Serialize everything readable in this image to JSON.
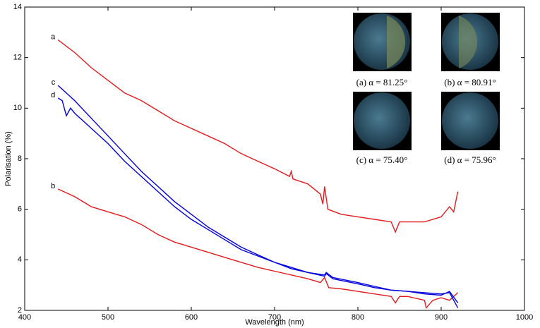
{
  "chart_data": {
    "type": "line",
    "xlabel": "Wavelength (nm)",
    "ylabel": "Polarisation (%)",
    "xlim": [
      400,
      1000
    ],
    "xticks": [
      400,
      500,
      600,
      700,
      800,
      900,
      1000
    ],
    "ylim": [
      2,
      14
    ],
    "yticks": [
      2,
      4,
      6,
      8,
      10,
      12,
      14
    ],
    "series": [
      {
        "name": "a",
        "color": "#e31a1c",
        "x": [
          440,
          460,
          480,
          500,
          520,
          540,
          560,
          580,
          600,
          620,
          640,
          660,
          680,
          700,
          718,
          720,
          722,
          740,
          755,
          758,
          760,
          764,
          780,
          800,
          820,
          840,
          845,
          850,
          860,
          880,
          900,
          910,
          915,
          920
        ],
        "values": [
          12.7,
          12.2,
          11.6,
          11.1,
          10.6,
          10.3,
          9.9,
          9.5,
          9.2,
          8.9,
          8.6,
          8.2,
          7.9,
          7.6,
          7.3,
          7.5,
          7.2,
          7.0,
          6.6,
          6.2,
          6.9,
          6.0,
          5.8,
          5.7,
          5.6,
          5.5,
          5.1,
          5.5,
          5.5,
          5.5,
          5.7,
          6.1,
          5.9,
          6.7
        ]
      },
      {
        "name": "b",
        "color": "#e31a1c",
        "x": [
          440,
          460,
          480,
          500,
          520,
          540,
          560,
          580,
          600,
          620,
          640,
          660,
          680,
          700,
          720,
          740,
          755,
          760,
          765,
          780,
          800,
          820,
          840,
          845,
          850,
          860,
          880,
          882,
          890,
          900,
          910,
          920
        ],
        "values": [
          6.8,
          6.5,
          6.1,
          5.9,
          5.7,
          5.4,
          5.0,
          4.7,
          4.5,
          4.3,
          4.1,
          3.9,
          3.7,
          3.55,
          3.4,
          3.25,
          3.1,
          3.3,
          2.9,
          2.85,
          2.75,
          2.65,
          2.55,
          2.3,
          2.55,
          2.55,
          2.4,
          2.1,
          2.4,
          2.5,
          2.4,
          2.7
        ]
      },
      {
        "name": "c",
        "color": "#0000dd",
        "x": [
          440,
          460,
          480,
          500,
          520,
          540,
          560,
          580,
          600,
          620,
          640,
          660,
          680,
          700,
          720,
          740,
          760,
          762,
          770,
          800,
          820,
          840,
          860,
          880,
          900,
          910,
          920
        ],
        "values": [
          10.9,
          10.3,
          9.6,
          8.9,
          8.2,
          7.5,
          6.9,
          6.3,
          5.8,
          5.3,
          4.9,
          4.5,
          4.2,
          3.9,
          3.7,
          3.5,
          3.4,
          3.5,
          3.3,
          3.1,
          2.95,
          2.8,
          2.75,
          2.7,
          2.65,
          2.7,
          2.1
        ]
      },
      {
        "name": "d",
        "color": "#0000dd",
        "x": [
          440,
          445,
          450,
          455,
          460,
          480,
          500,
          520,
          540,
          560,
          580,
          600,
          620,
          640,
          660,
          680,
          700,
          720,
          740,
          760,
          762,
          770,
          800,
          820,
          840,
          860,
          880,
          900,
          910,
          920
        ],
        "values": [
          10.4,
          10.3,
          9.7,
          10.0,
          9.8,
          9.2,
          8.6,
          7.9,
          7.3,
          6.7,
          6.1,
          5.6,
          5.2,
          4.8,
          4.4,
          4.15,
          3.9,
          3.65,
          3.5,
          3.35,
          3.45,
          3.25,
          3.05,
          2.9,
          2.8,
          2.75,
          2.65,
          2.6,
          2.75,
          2.3
        ]
      }
    ],
    "annotations": [
      "(a) α = 81.25°",
      "(b) α = 80.91°",
      "(c) α = 75.40°",
      "(d) α = 75.96°"
    ]
  }
}
